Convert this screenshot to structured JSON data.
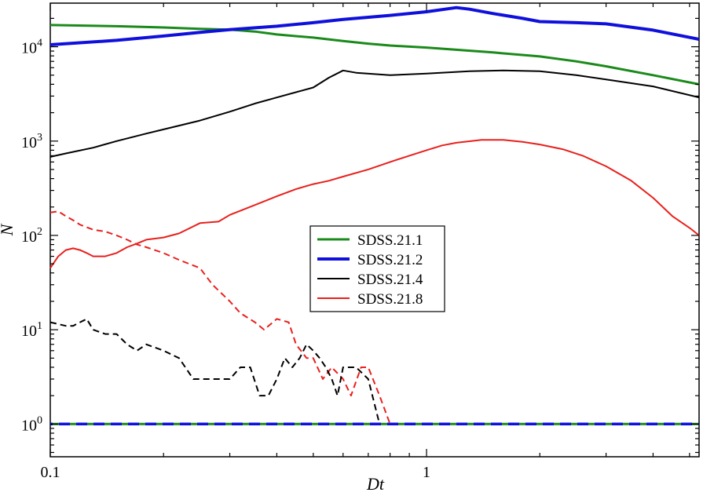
{
  "chart_data": {
    "type": "line",
    "xlabel": "Dt",
    "ylabel": "N",
    "x_scale": "log",
    "y_scale": "log",
    "xlim": [
      0.1,
      5.3
    ],
    "ylim": [
      0.45,
      29000
    ],
    "grid": false,
    "legend_position": "center",
    "x_ticks": [
      {
        "value": 0.1,
        "label": "0.1"
      },
      {
        "value": 1,
        "label": "1"
      }
    ],
    "y_ticks": [
      {
        "value": 1,
        "base": "10",
        "exp": "0"
      },
      {
        "value": 10,
        "base": "10",
        "exp": "1"
      },
      {
        "value": 100,
        "base": "10",
        "exp": "2"
      },
      {
        "value": 1000,
        "base": "10",
        "exp": "3"
      },
      {
        "value": 10000,
        "base": "10",
        "exp": "4"
      }
    ],
    "series": [
      {
        "name": "SDSS.21.1",
        "color": "#1a8a1a",
        "width": 3,
        "dash": "solid",
        "in_legend": true,
        "points": [
          [
            0.1,
            17000
          ],
          [
            0.15,
            16500
          ],
          [
            0.2,
            16000
          ],
          [
            0.25,
            15500
          ],
          [
            0.3,
            15200
          ],
          [
            0.35,
            14500
          ],
          [
            0.4,
            13500
          ],
          [
            0.5,
            12500
          ],
          [
            0.6,
            11500
          ],
          [
            0.7,
            10800
          ],
          [
            0.8,
            10300
          ],
          [
            1.0,
            9800
          ],
          [
            1.2,
            9300
          ],
          [
            1.5,
            8700
          ],
          [
            2.0,
            7900
          ],
          [
            2.5,
            7000
          ],
          [
            3.0,
            6200
          ],
          [
            4.0,
            5000
          ],
          [
            5.3,
            4000
          ]
        ]
      },
      {
        "name": "SDSS.21.2",
        "color": "#1010dd",
        "width": 4,
        "dash": "solid",
        "in_legend": true,
        "points": [
          [
            0.1,
            10500
          ],
          [
            0.15,
            11700
          ],
          [
            0.2,
            13000
          ],
          [
            0.25,
            14200
          ],
          [
            0.3,
            15200
          ],
          [
            0.4,
            16500
          ],
          [
            0.5,
            18000
          ],
          [
            0.6,
            19500
          ],
          [
            0.8,
            21500
          ],
          [
            1.0,
            23500
          ],
          [
            1.2,
            26000
          ],
          [
            1.3,
            25000
          ],
          [
            1.5,
            22500
          ],
          [
            1.8,
            20000
          ],
          [
            2.0,
            18500
          ],
          [
            2.5,
            18000
          ],
          [
            3.0,
            17500
          ],
          [
            4.0,
            15000
          ],
          [
            5.3,
            12000
          ]
        ]
      },
      {
        "name": "SDSS.21.4",
        "color": "#000000",
        "width": 2,
        "dash": "solid",
        "in_legend": true,
        "points": [
          [
            0.1,
            680
          ],
          [
            0.11,
            740
          ],
          [
            0.13,
            850
          ],
          [
            0.15,
            1000
          ],
          [
            0.18,
            1200
          ],
          [
            0.2,
            1330
          ],
          [
            0.25,
            1650
          ],
          [
            0.3,
            2050
          ],
          [
            0.35,
            2500
          ],
          [
            0.4,
            2900
          ],
          [
            0.5,
            3700
          ],
          [
            0.55,
            4700
          ],
          [
            0.6,
            5600
          ],
          [
            0.65,
            5300
          ],
          [
            0.8,
            5000
          ],
          [
            1.0,
            5200
          ],
          [
            1.3,
            5500
          ],
          [
            1.6,
            5600
          ],
          [
            2.0,
            5500
          ],
          [
            2.5,
            5000
          ],
          [
            3.0,
            4500
          ],
          [
            4.0,
            3800
          ],
          [
            5.3,
            2900
          ]
        ]
      },
      {
        "name": "SDSS.21.8",
        "color": "#e8201c",
        "width": 2,
        "dash": "solid",
        "in_legend": true,
        "points": [
          [
            0.1,
            45
          ],
          [
            0.105,
            60
          ],
          [
            0.11,
            70
          ],
          [
            0.115,
            73
          ],
          [
            0.12,
            70
          ],
          [
            0.125,
            65
          ],
          [
            0.13,
            60
          ],
          [
            0.14,
            60
          ],
          [
            0.15,
            65
          ],
          [
            0.16,
            75
          ],
          [
            0.17,
            82
          ],
          [
            0.18,
            90
          ],
          [
            0.2,
            95
          ],
          [
            0.22,
            105
          ],
          [
            0.25,
            135
          ],
          [
            0.28,
            140
          ],
          [
            0.3,
            165
          ],
          [
            0.35,
            210
          ],
          [
            0.4,
            260
          ],
          [
            0.45,
            310
          ],
          [
            0.5,
            350
          ],
          [
            0.55,
            380
          ],
          [
            0.6,
            420
          ],
          [
            0.7,
            500
          ],
          [
            0.8,
            600
          ],
          [
            0.9,
            700
          ],
          [
            1.0,
            800
          ],
          [
            1.1,
            900
          ],
          [
            1.2,
            960
          ],
          [
            1.4,
            1030
          ],
          [
            1.6,
            1030
          ],
          [
            1.8,
            980
          ],
          [
            2.0,
            920
          ],
          [
            2.3,
            820
          ],
          [
            2.6,
            700
          ],
          [
            3.0,
            540
          ],
          [
            3.5,
            380
          ],
          [
            4.0,
            250
          ],
          [
            4.5,
            160
          ],
          [
            5.0,
            120
          ],
          [
            5.3,
            100
          ]
        ]
      },
      {
        "name": "",
        "color": "#e8201c",
        "width": 2,
        "dash": "8,5",
        "in_legend": false,
        "points": [
          [
            0.1,
            175
          ],
          [
            0.105,
            180
          ],
          [
            0.11,
            160
          ],
          [
            0.115,
            145
          ],
          [
            0.12,
            130
          ],
          [
            0.13,
            115
          ],
          [
            0.14,
            110
          ],
          [
            0.15,
            100
          ],
          [
            0.16,
            90
          ],
          [
            0.17,
            80
          ],
          [
            0.18,
            75
          ],
          [
            0.2,
            65
          ],
          [
            0.22,
            55
          ],
          [
            0.25,
            45
          ],
          [
            0.27,
            30
          ],
          [
            0.3,
            20
          ],
          [
            0.32,
            15
          ],
          [
            0.35,
            12
          ],
          [
            0.37,
            10
          ],
          [
            0.4,
            13
          ],
          [
            0.43,
            12
          ],
          [
            0.45,
            7
          ],
          [
            0.48,
            5
          ],
          [
            0.5,
            5
          ],
          [
            0.53,
            3
          ],
          [
            0.56,
            4
          ],
          [
            0.6,
            3
          ],
          [
            0.63,
            2
          ],
          [
            0.67,
            4
          ],
          [
            0.7,
            4
          ],
          [
            0.75,
            2
          ],
          [
            0.8,
            1
          ],
          [
            5.3,
            1
          ]
        ]
      },
      {
        "name": "",
        "color": "#000000",
        "width": 2,
        "dash": "8,5",
        "in_legend": false,
        "points": [
          [
            0.1,
            12
          ],
          [
            0.11,
            11
          ],
          [
            0.115,
            11
          ],
          [
            0.12,
            12
          ],
          [
            0.125,
            13
          ],
          [
            0.13,
            10
          ],
          [
            0.14,
            9
          ],
          [
            0.15,
            9
          ],
          [
            0.16,
            7
          ],
          [
            0.17,
            6
          ],
          [
            0.18,
            7
          ],
          [
            0.2,
            6
          ],
          [
            0.22,
            5
          ],
          [
            0.24,
            3
          ],
          [
            0.27,
            3
          ],
          [
            0.3,
            3
          ],
          [
            0.32,
            4
          ],
          [
            0.34,
            4
          ],
          [
            0.36,
            2
          ],
          [
            0.38,
            2
          ],
          [
            0.4,
            3
          ],
          [
            0.42,
            5
          ],
          [
            0.44,
            4
          ],
          [
            0.46,
            5
          ],
          [
            0.48,
            7
          ],
          [
            0.5,
            6
          ],
          [
            0.52,
            5
          ],
          [
            0.54,
            4
          ],
          [
            0.56,
            3
          ],
          [
            0.58,
            2
          ],
          [
            0.6,
            4
          ],
          [
            0.65,
            4
          ],
          [
            0.7,
            3
          ],
          [
            0.75,
            1
          ],
          [
            0.8,
            1
          ],
          [
            5.3,
            1
          ]
        ]
      },
      {
        "name": "",
        "color": "#1a8a1a",
        "width": 3,
        "dash": "14,8",
        "in_legend": false,
        "points": [
          [
            0.1,
            1
          ],
          [
            5.3,
            1
          ]
        ]
      },
      {
        "name": "",
        "color": "#1010dd",
        "width": 3.5,
        "dash": "14,8",
        "dashoffset": 11,
        "in_legend": false,
        "points": [
          [
            0.1,
            1
          ],
          [
            5.3,
            1
          ]
        ]
      }
    ]
  }
}
